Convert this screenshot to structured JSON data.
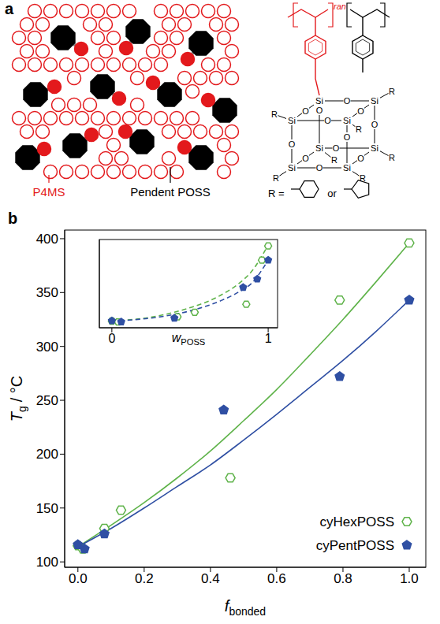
{
  "diagram": {
    "panel_label": "a",
    "labels": {
      "matrix": "P4MS",
      "pendent": "Pendent POSS"
    },
    "structure": {
      "copolymer": "ran",
      "atoms": {
        "silicon": "Si",
        "oxygen": "O",
        "substituent": "R"
      },
      "r_definition": "R =",
      "or": "or"
    }
  },
  "chart_data": [
    {
      "type": "scatter",
      "panel_label": "b",
      "xlabel": {
        "symbol": "f",
        "subscript": "bonded"
      },
      "ylabel": {
        "symbol": "T",
        "subscript": "g",
        "suffix": "/ °C"
      },
      "xlim": [
        -0.04,
        1.05
      ],
      "xticks": [
        {
          "value": 0,
          "label": "0.0"
        },
        0.2,
        0.4,
        0.6,
        0.8,
        {
          "value": 1,
          "label": "1.0"
        }
      ],
      "ylim": [
        95,
        408
      ],
      "yticks": [
        100,
        150,
        200,
        250,
        300,
        350,
        400
      ],
      "legend": "lower right",
      "series": [
        {
          "name": "cyHexPOSS",
          "type": "scatter",
          "color": "#5fb34a",
          "marker": "open hexagon",
          "x": [
            0,
            0.015,
            0.08,
            0.13,
            0.46,
            0.79,
            1.0
          ],
          "values": [
            115,
            112,
            131,
            148,
            178,
            343,
            396
          ]
        },
        {
          "name": "cyPentPOSS",
          "type": "scatter",
          "color": "#2f4fa3",
          "marker": "pentagon",
          "x": [
            0,
            0.02,
            0.08,
            0.44,
            0.79,
            1.0
          ],
          "values": [
            116,
            112,
            126,
            241,
            272,
            343
          ]
        },
        {
          "type": "line",
          "color": "#5fb34a",
          "line_style": "solid",
          "x": [
            0,
            0.1,
            0.2,
            0.3,
            0.4,
            0.5,
            0.6,
            0.7,
            0.8,
            0.9,
            1.0
          ],
          "values": [
            114,
            134,
            155,
            178,
            203,
            231,
            260,
            292,
            325,
            360,
            396
          ]
        },
        {
          "type": "line",
          "color": "#2f4fa3",
          "line_style": "solid",
          "x": [
            0,
            0.1,
            0.2,
            0.3,
            0.4,
            0.5,
            0.6,
            0.7,
            0.8,
            0.9,
            1.0
          ],
          "values": [
            114,
            131,
            150,
            170,
            190,
            213,
            237,
            262,
            287,
            314,
            343
          ]
        }
      ]
    },
    {
      "type": "scatter",
      "xlabel": {
        "symbol": "w",
        "subscript": "POSS"
      },
      "xlim": [
        -0.08,
        1.06
      ],
      "xticks": [
        0,
        1
      ],
      "ylim": [
        90,
        420
      ],
      "tick_labels": "x",
      "series": [
        {
          "type": "scatter",
          "color": "#5fb34a",
          "marker": "open hexagon",
          "x": [
            0,
            0.04,
            0.42,
            0.53,
            0.86,
            0.96,
            1.0
          ],
          "values": [
            115,
            112,
            131,
            148,
            178,
            343,
            396
          ]
        },
        {
          "type": "scatter",
          "color": "#2f4fa3",
          "marker": "pentagon",
          "x": [
            0,
            0.06,
            0.4,
            0.84,
            0.93,
            1.0
          ],
          "values": [
            116,
            112,
            126,
            241,
            272,
            343
          ]
        },
        {
          "type": "line",
          "color": "#5fb34a",
          "line_style": "dashed",
          "x": [
            0,
            0.1,
            0.2,
            0.3,
            0.4,
            0.5,
            0.6,
            0.7,
            0.8,
            0.9,
            1.0
          ],
          "values": [
            115,
            119,
            125,
            135,
            148,
            165,
            185,
            213,
            250,
            305,
            400
          ]
        },
        {
          "type": "line",
          "color": "#2f4fa3",
          "line_style": "dashed",
          "x": [
            0,
            0.1,
            0.2,
            0.3,
            0.4,
            0.5,
            0.6,
            0.7,
            0.8,
            0.9,
            1.0
          ],
          "values": [
            115,
            118,
            123,
            130,
            140,
            153,
            170,
            192,
            220,
            260,
            343
          ]
        }
      ]
    }
  ]
}
